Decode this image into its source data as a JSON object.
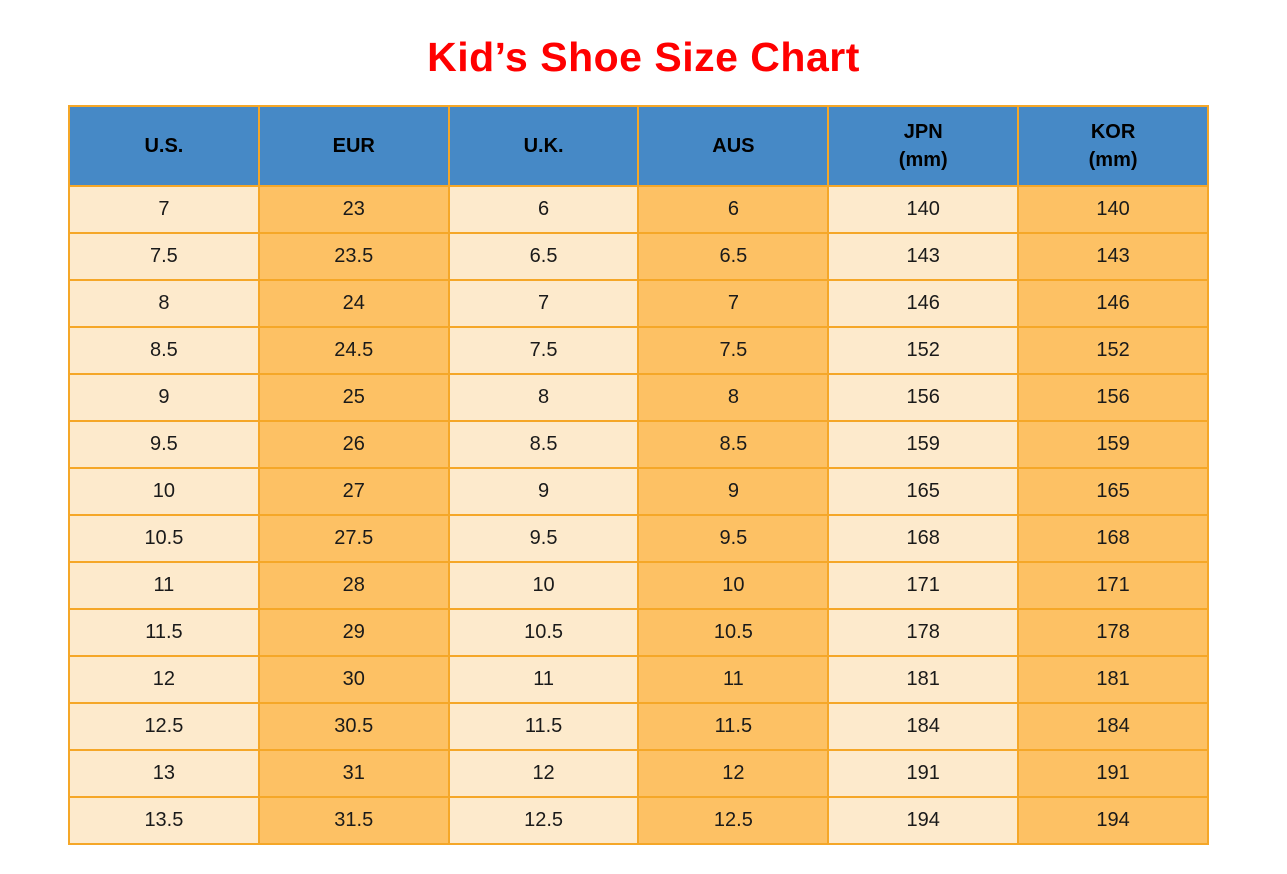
{
  "title": "Kid’s Shoe Size Chart",
  "colors": {
    "title_red": "#FF0000",
    "header_blue": "#4689C6",
    "cell_cream": "#FDEACC",
    "cell_orange": "#FDC164",
    "border_orange": "#F5A728",
    "text_dark": "#1A1A1A"
  },
  "chart_data": {
    "type": "table",
    "title": "Kid’s Shoe Size Chart",
    "columns": [
      {
        "label": "U.S.",
        "sublabel": ""
      },
      {
        "label": "EUR",
        "sublabel": ""
      },
      {
        "label": "U.K.",
        "sublabel": ""
      },
      {
        "label": "AUS",
        "sublabel": ""
      },
      {
        "label": "JPN",
        "sublabel": "(mm)"
      },
      {
        "label": "KOR",
        "sublabel": "(mm)"
      }
    ],
    "rows": [
      [
        "7",
        "23",
        "6",
        "6",
        "140",
        "140"
      ],
      [
        "7.5",
        "23.5",
        "6.5",
        "6.5",
        "143",
        "143"
      ],
      [
        "8",
        "24",
        "7",
        "7",
        "146",
        "146"
      ],
      [
        "8.5",
        "24.5",
        "7.5",
        "7.5",
        "152",
        "152"
      ],
      [
        "9",
        "25",
        "8",
        "8",
        "156",
        "156"
      ],
      [
        "9.5",
        "26",
        "8.5",
        "8.5",
        "159",
        "159"
      ],
      [
        "10",
        "27",
        "9",
        "9",
        "165",
        "165"
      ],
      [
        "10.5",
        "27.5",
        "9.5",
        "9.5",
        "168",
        "168"
      ],
      [
        "11",
        "28",
        "10",
        "10",
        "171",
        "171"
      ],
      [
        "11.5",
        "29",
        "10.5",
        "10.5",
        "178",
        "178"
      ],
      [
        "12",
        "30",
        "11",
        "11",
        "181",
        "181"
      ],
      [
        "12.5",
        "30.5",
        "11.5",
        "11.5",
        "184",
        "184"
      ],
      [
        "13",
        "31",
        "12",
        "12",
        "191",
        "191"
      ],
      [
        "13.5",
        "31.5",
        "12.5",
        "12.5",
        "194",
        "194"
      ]
    ]
  }
}
